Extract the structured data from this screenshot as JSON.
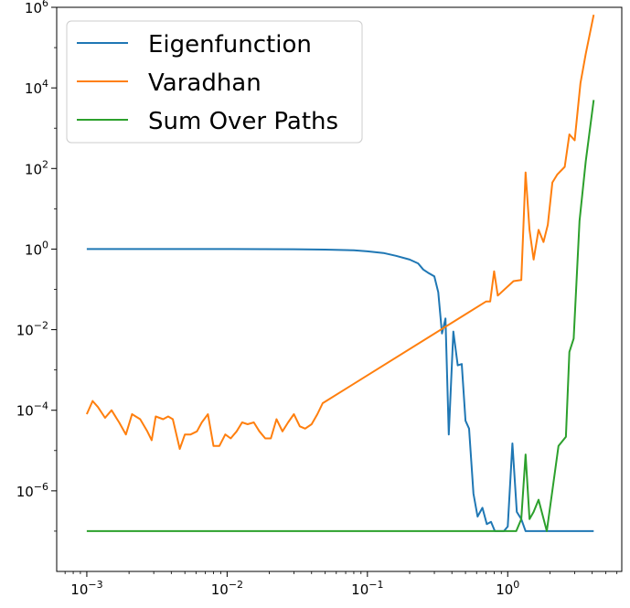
{
  "chart_data": {
    "type": "line",
    "title": "",
    "xlabel": "",
    "ylabel": "",
    "xscale": "log",
    "yscale": "log",
    "xlim": [
      0.00061,
      6.5
    ],
    "ylim": [
      1e-08,
      1000000.0
    ],
    "grid": false,
    "legend_position": "top-left",
    "x_ticks": [
      {
        "base": "10",
        "exp": "−3",
        "value": 0.001
      },
      {
        "base": "10",
        "exp": "−2",
        "value": 0.01
      },
      {
        "base": "10",
        "exp": "−1",
        "value": 0.1
      },
      {
        "base": "10",
        "exp": "0",
        "value": 1
      }
    ],
    "y_ticks": [
      {
        "base": "10",
        "exp": "−6",
        "value": 1e-06
      },
      {
        "base": "10",
        "exp": "−4",
        "value": 0.0001
      },
      {
        "base": "10",
        "exp": "−2",
        "value": 0.01
      },
      {
        "base": "10",
        "exp": "0",
        "value": 1
      },
      {
        "base": "10",
        "exp": "2",
        "value": 100
      },
      {
        "base": "10",
        "exp": "4",
        "value": 10000
      },
      {
        "base": "10",
        "exp": "6",
        "value": 1000000
      }
    ],
    "series": [
      {
        "name": "Eigenfunction",
        "color": "#1f77b4",
        "x": [
          0.001,
          0.01,
          0.03,
          0.05,
          0.08,
          0.1,
          0.13,
          0.16,
          0.2,
          0.23,
          0.25,
          0.27,
          0.3,
          0.32,
          0.34,
          0.36,
          0.38,
          0.41,
          0.44,
          0.47,
          0.5,
          0.53,
          0.57,
          0.61,
          0.66,
          0.71,
          0.76,
          0.81,
          0.87,
          0.94,
          1.0,
          1.08,
          1.16,
          1.25,
          1.34,
          1.44,
          1.55,
          1.66,
          1.79,
          1.92,
          2.07,
          4.1
        ],
        "y": [
          1.0,
          1.0,
          0.99,
          0.97,
          0.93,
          0.88,
          0.8,
          0.68,
          0.55,
          0.44,
          0.31,
          0.26,
          0.21,
          0.085,
          0.008,
          0.019,
          2.5e-05,
          0.009,
          0.0013,
          0.0014,
          5.5e-05,
          3.5e-05,
          8.5e-07,
          2.3e-07,
          3.8e-07,
          1.5e-07,
          1.7e-07,
          1e-07,
          1e-07,
          1e-07,
          1.3e-07,
          1.5e-05,
          3e-07,
          2e-07,
          1e-07,
          1e-07,
          1e-07,
          1e-07,
          1e-07,
          1e-07,
          1e-07,
          1e-07
        ]
      },
      {
        "name": "Varadhan",
        "color": "#ff7f0e",
        "x": [
          0.001,
          0.0011,
          0.0012,
          0.00135,
          0.0015,
          0.0017,
          0.0019,
          0.0021,
          0.0024,
          0.0027,
          0.0029,
          0.0031,
          0.0035,
          0.0038,
          0.0041,
          0.0046,
          0.005,
          0.0055,
          0.0061,
          0.0066,
          0.0073,
          0.008,
          0.0088,
          0.0097,
          0.0106,
          0.0117,
          0.0128,
          0.014,
          0.0155,
          0.017,
          0.0187,
          0.0205,
          0.0225,
          0.0248,
          0.0272,
          0.0299,
          0.033,
          0.036,
          0.04,
          0.044,
          0.048,
          0.7,
          0.75,
          0.8,
          0.85,
          1.1,
          1.25,
          1.34,
          1.43,
          1.53,
          1.66,
          1.8,
          1.93,
          2.08,
          2.25,
          2.55,
          2.75,
          3.0,
          3.3,
          3.6,
          4.1
        ],
        "y": [
          8e-05,
          0.00017,
          0.00012,
          6.5e-05,
          0.0001,
          5e-05,
          2.5e-05,
          8e-05,
          6e-05,
          3e-05,
          1.8e-05,
          7e-05,
          6e-05,
          7e-05,
          6e-05,
          1.1e-05,
          2.5e-05,
          2.5e-05,
          3e-05,
          5e-05,
          8e-05,
          1.3e-05,
          1.3e-05,
          2.5e-05,
          2e-05,
          3e-05,
          5e-05,
          4.5e-05,
          5e-05,
          3e-05,
          2e-05,
          2e-05,
          6e-05,
          3e-05,
          5e-05,
          8e-05,
          4e-05,
          3.5e-05,
          4.5e-05,
          8e-05,
          0.00015,
          0.05,
          0.05,
          0.28,
          0.07,
          0.16,
          0.17,
          80,
          3,
          0.55,
          3,
          1.5,
          4,
          45,
          70,
          110,
          700,
          500,
          13000,
          70000,
          650000
        ]
      },
      {
        "name": "Sum Over Paths",
        "color": "#2ca02c",
        "x": [
          0.001,
          0.6,
          1.0,
          1.15,
          1.25,
          1.34,
          1.43,
          1.53,
          1.66,
          1.9,
          2.3,
          2.6,
          2.75,
          2.95,
          3.25,
          3.6,
          4.1
        ],
        "y": [
          1e-07,
          1e-07,
          1e-07,
          1e-07,
          2e-07,
          8e-06,
          2e-07,
          3e-07,
          6e-07,
          1e-07,
          1.3e-05,
          2.2e-05,
          0.0028,
          0.006,
          5,
          150,
          5000
        ]
      }
    ]
  }
}
